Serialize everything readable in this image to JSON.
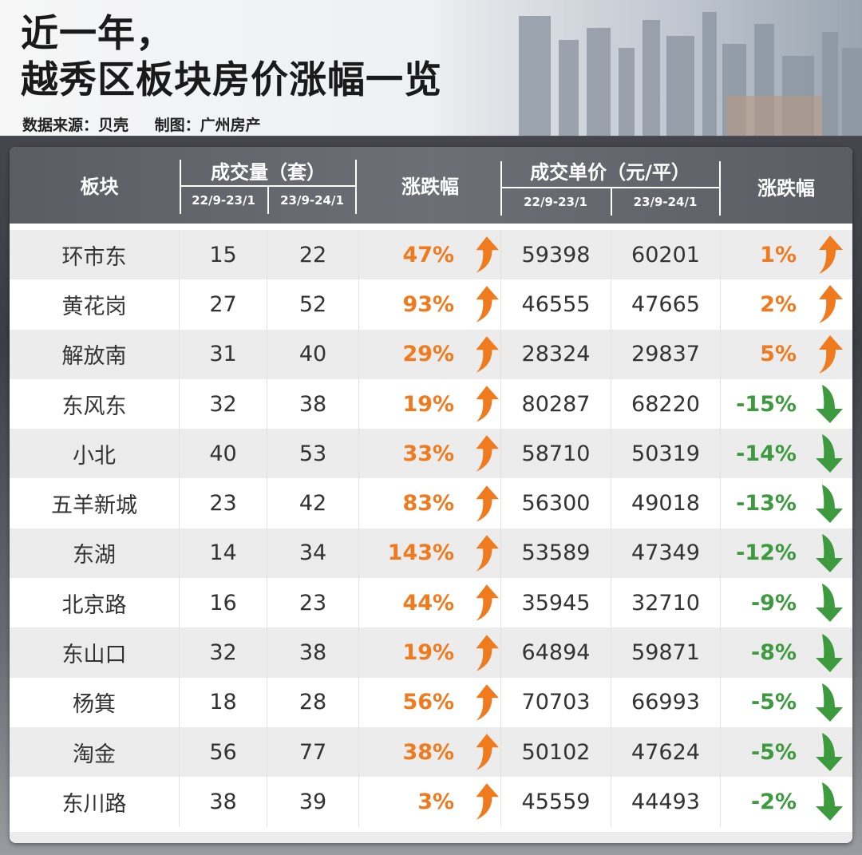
{
  "header": {
    "title_line1": "近一年，",
    "title_line2": "越秀区板块房价涨幅一览",
    "source": "数据来源：贝壳",
    "made_by": "制图：广州房产"
  },
  "table": {
    "columns": {
      "sector": "板块",
      "volume": "成交量（套）",
      "volume_change": "涨跌幅",
      "price": "成交单价（元/平）",
      "price_change": "涨跌幅",
      "period_a": "22/9-23/1",
      "period_b": "23/9-24/1"
    },
    "colors": {
      "up": "#f07a1e",
      "down": "#3d9a3e",
      "header_bg": "#63666c"
    },
    "rows": [
      {
        "name": "环市东",
        "vol_a": "15",
        "vol_b": "22",
        "vol_chg": "47%",
        "vol_dir": "up",
        "price_a": "59398",
        "price_b": "60201",
        "price_chg": "1%",
        "price_dir": "up"
      },
      {
        "name": "黄花岗",
        "vol_a": "27",
        "vol_b": "52",
        "vol_chg": "93%",
        "vol_dir": "up",
        "price_a": "46555",
        "price_b": "47665",
        "price_chg": "2%",
        "price_dir": "up"
      },
      {
        "name": "解放南",
        "vol_a": "31",
        "vol_b": "40",
        "vol_chg": "29%",
        "vol_dir": "up",
        "price_a": "28324",
        "price_b": "29837",
        "price_chg": "5%",
        "price_dir": "up"
      },
      {
        "name": "东风东",
        "vol_a": "32",
        "vol_b": "38",
        "vol_chg": "19%",
        "vol_dir": "up",
        "price_a": "80287",
        "price_b": "68220",
        "price_chg": "-15%",
        "price_dir": "down"
      },
      {
        "name": "小北",
        "vol_a": "40",
        "vol_b": "53",
        "vol_chg": "33%",
        "vol_dir": "up",
        "price_a": "58710",
        "price_b": "50319",
        "price_chg": "-14%",
        "price_dir": "down"
      },
      {
        "name": "五羊新城",
        "vol_a": "23",
        "vol_b": "42",
        "vol_chg": "83%",
        "vol_dir": "up",
        "price_a": "56300",
        "price_b": "49018",
        "price_chg": "-13%",
        "price_dir": "down"
      },
      {
        "name": "东湖",
        "vol_a": "14",
        "vol_b": "34",
        "vol_chg": "143%",
        "vol_dir": "up",
        "price_a": "53589",
        "price_b": "47349",
        "price_chg": "-12%",
        "price_dir": "down"
      },
      {
        "name": "北京路",
        "vol_a": "16",
        "vol_b": "23",
        "vol_chg": "44%",
        "vol_dir": "up",
        "price_a": "35945",
        "price_b": "32710",
        "price_chg": "-9%",
        "price_dir": "down"
      },
      {
        "name": "东山口",
        "vol_a": "32",
        "vol_b": "38",
        "vol_chg": "19%",
        "vol_dir": "up",
        "price_a": "64894",
        "price_b": "59871",
        "price_chg": "-8%",
        "price_dir": "down"
      },
      {
        "name": "杨箕",
        "vol_a": "18",
        "vol_b": "28",
        "vol_chg": "56%",
        "vol_dir": "up",
        "price_a": "70703",
        "price_b": "66993",
        "price_chg": "-5%",
        "price_dir": "down"
      },
      {
        "name": "淘金",
        "vol_a": "56",
        "vol_b": "77",
        "vol_chg": "38%",
        "vol_dir": "up",
        "price_a": "50102",
        "price_b": "47624",
        "price_chg": "-5%",
        "price_dir": "down"
      },
      {
        "name": "东川路",
        "vol_a": "38",
        "vol_b": "39",
        "vol_chg": "3%",
        "vol_dir": "up",
        "price_a": "45559",
        "price_b": "44493",
        "price_chg": "-2%",
        "price_dir": "down"
      }
    ]
  },
  "icons": {
    "up": "arrow-up-icon",
    "down": "arrow-down-icon"
  }
}
